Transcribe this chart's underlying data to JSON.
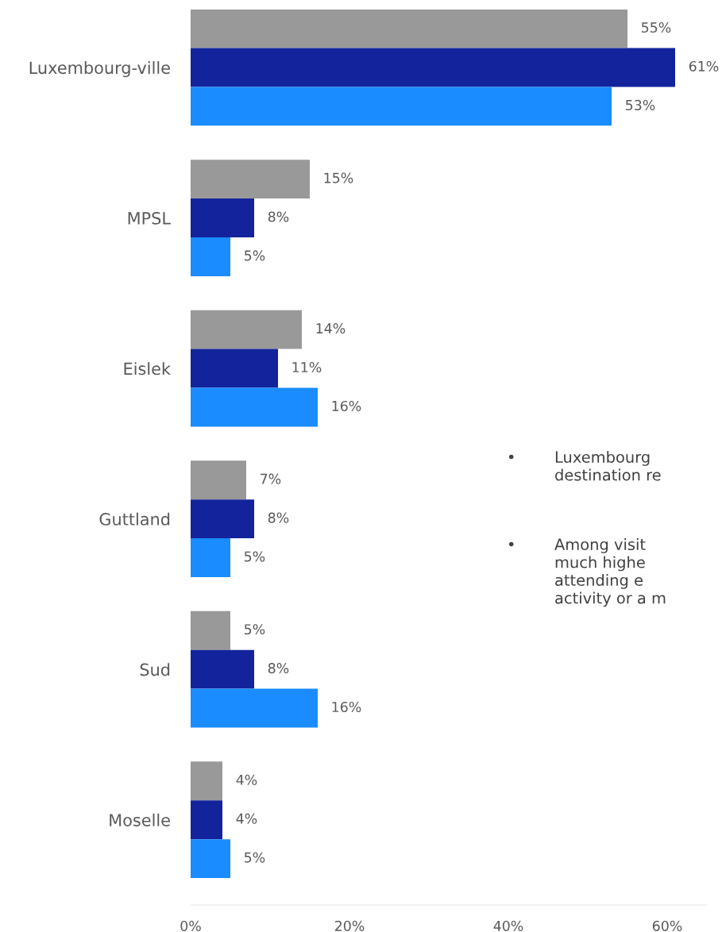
{
  "chart_data": {
    "type": "bar",
    "orientation": "horizontal",
    "categories": [
      "Luxembourg-ville",
      "MPSL",
      "Eislek",
      "Guttland",
      "Sud",
      "Moselle"
    ],
    "series": [
      {
        "color": "#999999",
        "values": [
          55,
          15,
          14,
          7,
          5,
          4
        ],
        "value_labels": [
          "55%",
          "15%",
          "14%",
          "7%",
          "5%",
          "4%"
        ]
      },
      {
        "color": "#13239c",
        "values": [
          61,
          8,
          11,
          8,
          8,
          4
        ],
        "value_labels": [
          "61%",
          "8%",
          "11%",
          "8%",
          "8%",
          "4%"
        ]
      },
      {
        "color": "#1a8cff",
        "values": [
          53,
          5,
          16,
          5,
          16,
          5
        ],
        "value_labels": [
          "53%",
          "5%",
          "16%",
          "5%",
          "16%",
          "5%"
        ]
      }
    ],
    "xlim": [
      0,
      65
    ],
    "xticks": [
      {
        "value": 0,
        "label": "0%"
      },
      {
        "value": 20,
        "label": "20%"
      },
      {
        "value": 40,
        "label": "40%"
      },
      {
        "value": 60,
        "label": "60%"
      }
    ],
    "grid": false,
    "legend": false,
    "annotations": [
      "•",
      "Luxembourg\ndestination re",
      "•",
      "Among visit\nmuch highe\nattending e\nactivity or a m"
    ]
  }
}
